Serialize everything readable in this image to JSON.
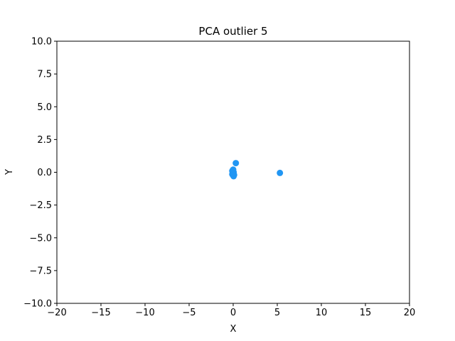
{
  "chart_data": {
    "type": "scatter",
    "title": "PCA outlier 5",
    "xlabel": "X",
    "ylabel": "Y",
    "xlim": [
      -20,
      20
    ],
    "ylim": [
      -10,
      10
    ],
    "xticks": [
      -20,
      -15,
      -10,
      -5,
      0,
      5,
      10,
      15,
      20
    ],
    "xtick_labels": [
      "−20",
      "−15",
      "−10",
      "−5",
      "0",
      "5",
      "10",
      "15",
      "20"
    ],
    "yticks": [
      -10,
      -7.5,
      -5,
      -2.5,
      0,
      2.5,
      5,
      7.5,
      10
    ],
    "ytick_labels": [
      "−10.0",
      "−7.5",
      "−5.0",
      "−2.5",
      "0.0",
      "2.5",
      "5.0",
      "7.5",
      "10.0"
    ],
    "grid": false,
    "color": "#2196f3",
    "series": [
      {
        "x": [
          0.3,
          -0.1,
          0.0,
          -0.05,
          0.05,
          -0.1,
          0.0,
          0.1,
          -0.05,
          0.05,
          0.0,
          0.05,
          5.3
        ],
        "y": [
          0.7,
          0.1,
          0.05,
          -0.05,
          0.0,
          -0.15,
          -0.25,
          -0.2,
          0.15,
          -0.3,
          0.2,
          -0.1,
          -0.05
        ]
      }
    ]
  }
}
